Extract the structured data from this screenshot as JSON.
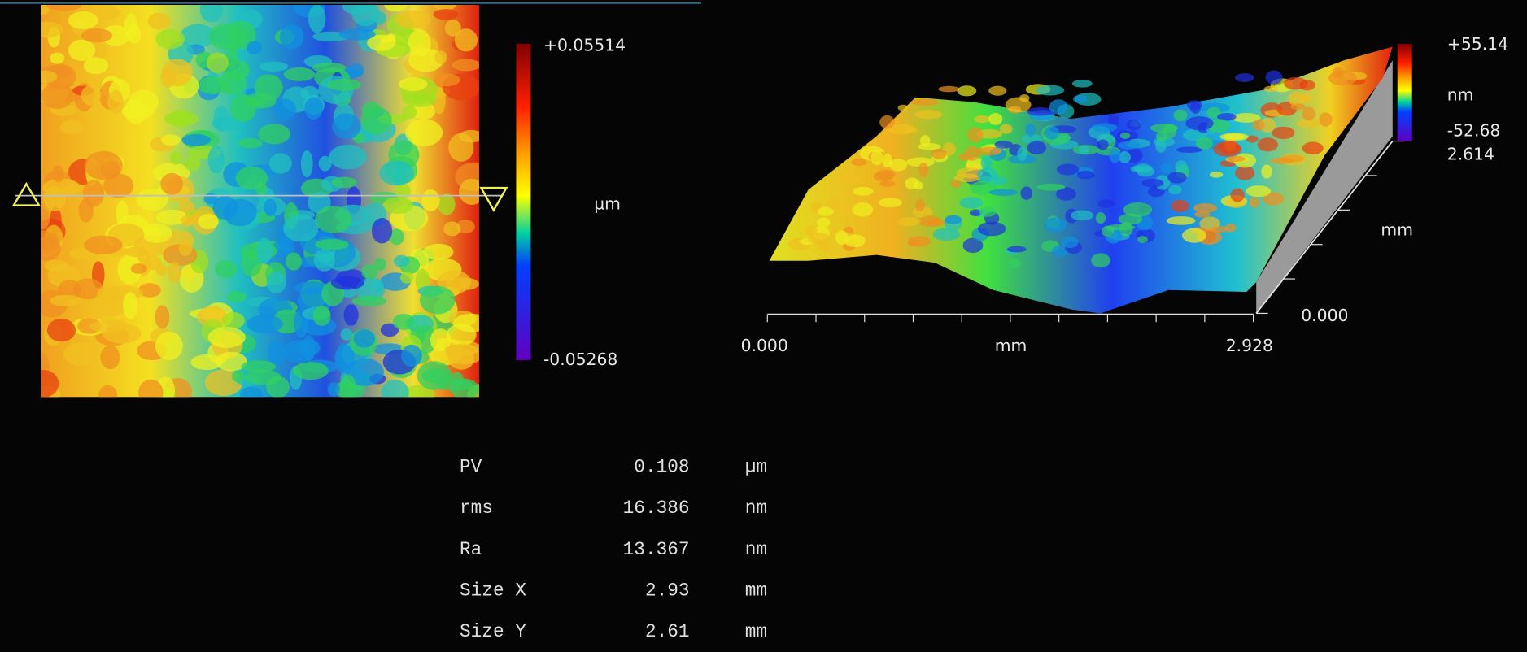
{
  "colorbar": {
    "max": "+0.05514",
    "unit": "µm",
    "min": "-0.05268"
  },
  "surface_3d": {
    "z_max": "+55.14",
    "z_unit": "nm",
    "z_min": "-52.68",
    "y_max": "2.614",
    "y_unit": "mm",
    "y_min": "0.000",
    "x_min": "0.000",
    "x_unit": "mm",
    "x_max": "2.928"
  },
  "stats": {
    "rows": [
      [
        "PV",
        "0.108",
        "µm"
      ],
      [
        "rms",
        "16.386",
        "nm"
      ],
      [
        "Ra",
        "13.367",
        "nm"
      ],
      [
        "Size X",
        "2.93",
        "mm"
      ],
      [
        "Size Y",
        "2.61",
        "mm"
      ]
    ]
  }
}
